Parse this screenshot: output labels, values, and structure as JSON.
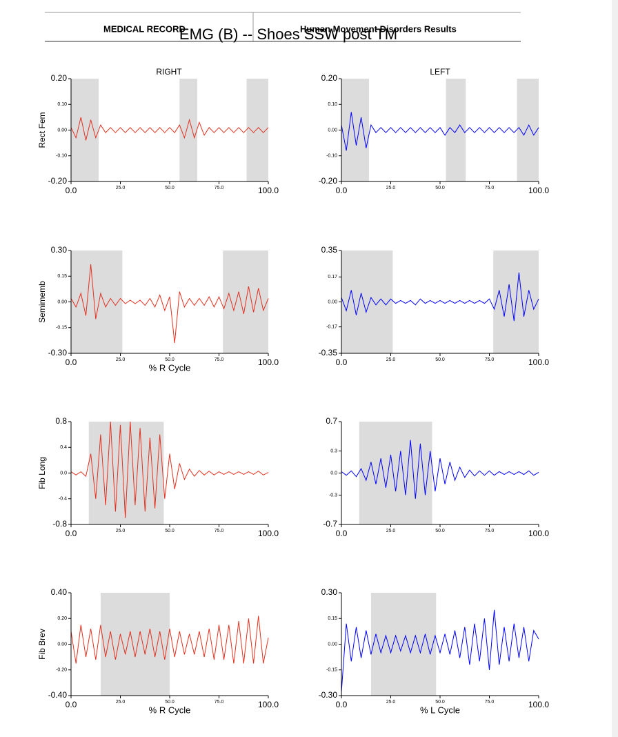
{
  "header": {
    "left": "MEDICAL RECORD",
    "right": "Human Movement Disorders Results"
  },
  "title": "EMG (B) -- Shoes SSW post TM",
  "columns": [
    "RIGHT",
    "LEFT"
  ],
  "chart_data": [
    {
      "type": "line",
      "ylabel": "Rect Fem",
      "xlim": [
        0,
        100
      ],
      "ylim": [
        -0.2,
        0.2
      ],
      "yticks": [
        {
          "value": -0.2,
          "label": "-0.20"
        },
        {
          "value": -0.1,
          "label": "-0.10"
        },
        {
          "value": 0,
          "label": "0.00"
        },
        {
          "value": 0.1,
          "label": "0.10"
        },
        {
          "value": 0.2,
          "label": "0.20"
        }
      ],
      "xticks": [
        {
          "value": 0,
          "label": "0.0"
        },
        {
          "value": 25,
          "label": "25.0"
        },
        {
          "value": 50,
          "label": "50.0"
        },
        {
          "value": 75,
          "label": "75.0"
        },
        {
          "value": 100,
          "label": "100.0"
        }
      ],
      "shaded": [
        [
          0,
          14
        ],
        [
          55,
          64
        ],
        [
          89,
          100
        ]
      ],
      "x": [
        0,
        2.5,
        5,
        7.5,
        10,
        12.5,
        15,
        17.5,
        20,
        22.5,
        25,
        27.5,
        30,
        32.5,
        35,
        37.5,
        40,
        42.5,
        45,
        47.5,
        50,
        52.5,
        55,
        57.5,
        60,
        62.5,
        65,
        67.5,
        70,
        72.5,
        75,
        77.5,
        80,
        82.5,
        85,
        87.5,
        90,
        92.5,
        95,
        97.5,
        100
      ],
      "series": [
        {
          "color": "#e3301f",
          "values": [
            0.01,
            -0.03,
            0.05,
            -0.04,
            0.04,
            -0.03,
            0.02,
            -0.01,
            0.01,
            -0.01,
            0.01,
            -0.01,
            0.01,
            -0.01,
            0.01,
            -0.01,
            0.01,
            -0.01,
            0.01,
            -0.01,
            0.01,
            -0.01,
            0.02,
            -0.03,
            0.04,
            -0.03,
            0.03,
            -0.02,
            0.01,
            -0.01,
            0.01,
            -0.01,
            0.01,
            -0.01,
            0.01,
            -0.01,
            0.01,
            -0.01,
            0.01,
            -0.01,
            0.01
          ]
        }
      ]
    },
    {
      "type": "line",
      "xlim": [
        0,
        100
      ],
      "ylim": [
        -0.2,
        0.2
      ],
      "yticks": [
        {
          "value": -0.2,
          "label": "-0.20"
        },
        {
          "value": -0.1,
          "label": "-0.10"
        },
        {
          "value": 0,
          "label": "0.00"
        },
        {
          "value": 0.1,
          "label": "0.10"
        },
        {
          "value": 0.2,
          "label": "0.20"
        }
      ],
      "xticks": [
        {
          "value": 0,
          "label": "0.0"
        },
        {
          "value": 25,
          "label": "25.0"
        },
        {
          "value": 50,
          "label": "50.0"
        },
        {
          "value": 75,
          "label": "75.0"
        },
        {
          "value": 100,
          "label": "100.0"
        }
      ],
      "shaded": [
        [
          0,
          14
        ],
        [
          53,
          63
        ],
        [
          89,
          100
        ]
      ],
      "x": [
        0,
        2.5,
        5,
        7.5,
        10,
        12.5,
        15,
        17.5,
        20,
        22.5,
        25,
        27.5,
        30,
        32.5,
        35,
        37.5,
        40,
        42.5,
        45,
        47.5,
        50,
        52.5,
        55,
        57.5,
        60,
        62.5,
        65,
        67.5,
        70,
        72.5,
        75,
        77.5,
        80,
        82.5,
        85,
        87.5,
        90,
        92.5,
        95,
        97.5,
        100
      ],
      "series": [
        {
          "color": "#0000ff",
          "values": [
            0.02,
            -0.08,
            0.07,
            -0.06,
            0.05,
            -0.07,
            0.02,
            -0.01,
            0.01,
            -0.01,
            0.01,
            -0.01,
            0.01,
            -0.01,
            0.01,
            -0.01,
            0.01,
            -0.01,
            0.01,
            -0.01,
            0.01,
            -0.02,
            0.01,
            -0.01,
            0.02,
            -0.01,
            0.01,
            -0.01,
            0.01,
            -0.01,
            0.01,
            -0.01,
            0.01,
            -0.01,
            0.01,
            -0.01,
            0.01,
            -0.02,
            0.02,
            -0.02,
            0.01
          ]
        }
      ]
    },
    {
      "type": "line",
      "ylabel": "Semimemb",
      "xlabel": "% R Cycle",
      "xlim": [
        0,
        100
      ],
      "ylim": [
        -0.3,
        0.3
      ],
      "yticks": [
        {
          "value": -0.3,
          "label": "-0.30"
        },
        {
          "value": -0.15,
          "label": "-0.15"
        },
        {
          "value": 0,
          "label": "0.00"
        },
        {
          "value": 0.15,
          "label": "0.15"
        },
        {
          "value": 0.3,
          "label": "0.30"
        }
      ],
      "xticks": [
        {
          "value": 0,
          "label": "0.0"
        },
        {
          "value": 25,
          "label": "25.0"
        },
        {
          "value": 50,
          "label": "50.0"
        },
        {
          "value": 75,
          "label": "75.0"
        },
        {
          "value": 100,
          "label": "100.0"
        }
      ],
      "shaded": [
        [
          0,
          26
        ],
        [
          77,
          100
        ]
      ],
      "x": [
        0,
        2.5,
        5,
        7.5,
        10,
        12.5,
        15,
        17.5,
        20,
        22.5,
        25,
        27.5,
        30,
        32.5,
        35,
        37.5,
        40,
        42.5,
        45,
        47.5,
        50,
        52.5,
        55,
        57.5,
        60,
        62.5,
        65,
        67.5,
        70,
        72.5,
        75,
        77.5,
        80,
        82.5,
        85,
        87.5,
        90,
        92.5,
        95,
        97.5,
        100
      ],
      "series": [
        {
          "color": "#e3301f",
          "values": [
            0.02,
            -0.03,
            0.05,
            -0.08,
            0.22,
            -0.1,
            0.05,
            -0.03,
            0.02,
            -0.02,
            0.02,
            -0.01,
            0.01,
            -0.01,
            0.01,
            -0.02,
            0.02,
            -0.03,
            0.04,
            -0.05,
            0.03,
            -0.24,
            0.06,
            -0.03,
            0.02,
            -0.02,
            0.02,
            -0.02,
            0.03,
            -0.03,
            0.03,
            -0.04,
            0.05,
            -0.05,
            0.06,
            -0.07,
            0.09,
            -0.06,
            0.08,
            -0.05,
            0.02
          ]
        }
      ]
    },
    {
      "type": "line",
      "xlim": [
        0,
        100
      ],
      "ylim": [
        -0.35,
        0.35
      ],
      "yticks": [
        {
          "value": -0.35,
          "label": "-0.35"
        },
        {
          "value": -0.17,
          "label": "-0.17"
        },
        {
          "value": 0,
          "label": "0.00"
        },
        {
          "value": 0.17,
          "label": "0.17"
        },
        {
          "value": 0.35,
          "label": "0.35"
        }
      ],
      "xticks": [
        {
          "value": 0,
          "label": "0.0"
        },
        {
          "value": 25,
          "label": "25.0"
        },
        {
          "value": 50,
          "label": "50.0"
        },
        {
          "value": 75,
          "label": "75.0"
        },
        {
          "value": 100,
          "label": "100.0"
        }
      ],
      "shaded": [
        [
          0,
          26
        ],
        [
          77,
          100
        ]
      ],
      "x": [
        0,
        2.5,
        5,
        7.5,
        10,
        12.5,
        15,
        17.5,
        20,
        22.5,
        25,
        27.5,
        30,
        32.5,
        35,
        37.5,
        40,
        42.5,
        45,
        47.5,
        50,
        52.5,
        55,
        57.5,
        60,
        62.5,
        65,
        67.5,
        70,
        72.5,
        75,
        77.5,
        80,
        82.5,
        85,
        87.5,
        90,
        92.5,
        95,
        97.5,
        100
      ],
      "series": [
        {
          "color": "#0000ff",
          "values": [
            0.03,
            -0.06,
            0.08,
            -0.09,
            0.06,
            -0.07,
            0.03,
            -0.02,
            0.02,
            -0.02,
            0.02,
            -0.01,
            0.01,
            -0.01,
            0.01,
            -0.02,
            0.02,
            -0.01,
            0.01,
            -0.01,
            0.01,
            -0.01,
            0.01,
            -0.01,
            0.01,
            -0.01,
            0.01,
            -0.01,
            0.01,
            -0.01,
            0.02,
            -0.05,
            0.08,
            -0.1,
            0.12,
            -0.13,
            0.2,
            -0.1,
            0.08,
            -0.05,
            0.02
          ]
        }
      ]
    },
    {
      "type": "line",
      "ylabel": "Fib Long",
      "xlim": [
        0,
        100
      ],
      "ylim": [
        -0.8,
        0.8
      ],
      "yticks": [
        {
          "value": -0.8,
          "label": "-0.8"
        },
        {
          "value": -0.4,
          "label": "-0.4"
        },
        {
          "value": 0,
          "label": "0.0"
        },
        {
          "value": 0.4,
          "label": "0.4"
        },
        {
          "value": 0.8,
          "label": "0.8"
        }
      ],
      "xticks": [
        {
          "value": 0,
          "label": "0.0"
        },
        {
          "value": 25,
          "label": "25.0"
        },
        {
          "value": 50,
          "label": "50.0"
        },
        {
          "value": 75,
          "label": "75.0"
        },
        {
          "value": 100,
          "label": "100.0"
        }
      ],
      "shaded": [
        [
          9,
          47
        ]
      ],
      "x": [
        0,
        2.5,
        5,
        7.5,
        10,
        12.5,
        15,
        17.5,
        20,
        22.5,
        25,
        27.5,
        30,
        32.5,
        35,
        37.5,
        40,
        42.5,
        45,
        47.5,
        50,
        52.5,
        55,
        57.5,
        60,
        62.5,
        65,
        67.5,
        70,
        72.5,
        75,
        77.5,
        80,
        82.5,
        85,
        87.5,
        90,
        92.5,
        95,
        97.5,
        100
      ],
      "series": [
        {
          "color": "#e3301f",
          "values": [
            0.02,
            -0.03,
            0.02,
            -0.05,
            0.3,
            -0.4,
            0.6,
            -0.5,
            0.8,
            -0.6,
            0.75,
            -0.7,
            0.8,
            -0.5,
            0.7,
            -0.6,
            0.55,
            -0.55,
            0.6,
            -0.4,
            0.3,
            -0.25,
            0.15,
            -0.1,
            0.06,
            -0.05,
            0.04,
            -0.03,
            0.03,
            -0.03,
            0.02,
            -0.02,
            0.02,
            -0.02,
            0.02,
            -0.02,
            0.02,
            -0.02,
            0.03,
            -0.03,
            0.01
          ]
        }
      ]
    },
    {
      "type": "line",
      "xlim": [
        0,
        100
      ],
      "ylim": [
        -0.7,
        0.7
      ],
      "yticks": [
        {
          "value": -0.7,
          "label": "-0.7"
        },
        {
          "value": -0.3,
          "label": "-0.3"
        },
        {
          "value": 0,
          "label": "0.0"
        },
        {
          "value": 0.3,
          "label": "0.3"
        },
        {
          "value": 0.7,
          "label": "0.7"
        }
      ],
      "xticks": [
        {
          "value": 0,
          "label": "0.0"
        },
        {
          "value": 25,
          "label": "25.0"
        },
        {
          "value": 50,
          "label": "50.0"
        },
        {
          "value": 75,
          "label": "75.0"
        },
        {
          "value": 100,
          "label": "100.0"
        }
      ],
      "shaded": [
        [
          9,
          46
        ]
      ],
      "x": [
        0,
        2.5,
        5,
        7.5,
        10,
        12.5,
        15,
        17.5,
        20,
        22.5,
        25,
        27.5,
        30,
        32.5,
        35,
        37.5,
        40,
        42.5,
        45,
        47.5,
        50,
        52.5,
        55,
        57.5,
        60,
        62.5,
        65,
        67.5,
        70,
        72.5,
        75,
        77.5,
        80,
        82.5,
        85,
        87.5,
        90,
        92.5,
        95,
        97.5,
        100
      ],
      "series": [
        {
          "color": "#0000ff",
          "values": [
            0.02,
            -0.03,
            0.03,
            -0.05,
            0.06,
            -0.1,
            0.15,
            -0.15,
            0.2,
            -0.2,
            0.25,
            -0.25,
            0.3,
            -0.3,
            0.45,
            -0.35,
            0.4,
            -0.3,
            0.3,
            -0.25,
            0.2,
            -0.15,
            0.15,
            -0.1,
            0.08,
            -0.06,
            0.04,
            -0.04,
            0.03,
            -0.03,
            0.03,
            -0.03,
            0.02,
            -0.02,
            0.02,
            -0.02,
            0.02,
            -0.02,
            0.03,
            -0.03,
            0.01
          ]
        }
      ]
    },
    {
      "type": "line",
      "ylabel": "Fib Brev",
      "xlabel": "% R Cycle",
      "xlim": [
        0,
        100
      ],
      "ylim": [
        -0.4,
        0.4
      ],
      "yticks": [
        {
          "value": -0.4,
          "label": "-0.40"
        },
        {
          "value": -0.2,
          "label": "-0.20"
        },
        {
          "value": 0,
          "label": "0.00"
        },
        {
          "value": 0.2,
          "label": "0.20"
        },
        {
          "value": 0.4,
          "label": "0.40"
        }
      ],
      "xticks": [
        {
          "value": 0,
          "label": "0.0"
        },
        {
          "value": 25,
          "label": "25.0"
        },
        {
          "value": 50,
          "label": "50.0"
        },
        {
          "value": 75,
          "label": "75.0"
        },
        {
          "value": 100,
          "label": "100.0"
        }
      ],
      "shaded": [
        [
          15,
          50
        ]
      ],
      "x": [
        0,
        2.5,
        5,
        7.5,
        10,
        12.5,
        15,
        17.5,
        20,
        22.5,
        25,
        27.5,
        30,
        32.5,
        35,
        37.5,
        40,
        42.5,
        45,
        47.5,
        50,
        52.5,
        55,
        57.5,
        60,
        62.5,
        65,
        67.5,
        70,
        72.5,
        75,
        77.5,
        80,
        82.5,
        85,
        87.5,
        90,
        92.5,
        95,
        97.5,
        100
      ],
      "series": [
        {
          "color": "#e3301f",
          "values": [
            0.1,
            -0.15,
            0.15,
            -0.1,
            0.12,
            -0.12,
            0.15,
            -0.1,
            0.1,
            -0.12,
            0.08,
            -0.08,
            0.1,
            -0.1,
            0.1,
            -0.08,
            0.12,
            -0.1,
            0.1,
            -0.12,
            0.12,
            -0.1,
            0.1,
            -0.08,
            0.08,
            -0.08,
            0.1,
            -0.1,
            0.12,
            -0.12,
            0.15,
            -0.12,
            0.15,
            -0.15,
            0.18,
            -0.15,
            0.2,
            -0.15,
            0.22,
            -0.15,
            0.05
          ]
        }
      ]
    },
    {
      "type": "line",
      "xlabel": "% L Cycle",
      "xlim": [
        0,
        100
      ],
      "ylim": [
        -0.3,
        0.3
      ],
      "yticks": [
        {
          "value": -0.3,
          "label": "-0.30"
        },
        {
          "value": -0.15,
          "label": "-0.15"
        },
        {
          "value": 0,
          "label": "0.00"
        },
        {
          "value": 0.15,
          "label": "0.15"
        },
        {
          "value": 0.3,
          "label": "0.30"
        }
      ],
      "xticks": [
        {
          "value": 0,
          "label": "0.0"
        },
        {
          "value": 25,
          "label": "25.0"
        },
        {
          "value": 50,
          "label": "50.0"
        },
        {
          "value": 75,
          "label": "75.0"
        },
        {
          "value": 100,
          "label": "100.0"
        }
      ],
      "shaded": [
        [
          15,
          48
        ]
      ],
      "x": [
        0,
        2.5,
        5,
        7.5,
        10,
        12.5,
        15,
        17.5,
        20,
        22.5,
        25,
        27.5,
        30,
        32.5,
        35,
        37.5,
        40,
        42.5,
        45,
        47.5,
        50,
        52.5,
        55,
        57.5,
        60,
        62.5,
        65,
        67.5,
        70,
        72.5,
        75,
        77.5,
        80,
        82.5,
        85,
        87.5,
        90,
        92.5,
        95,
        97.5,
        100
      ],
      "series": [
        {
          "color": "#0000ff",
          "values": [
            -0.28,
            0.12,
            -0.1,
            0.1,
            -0.08,
            0.08,
            -0.06,
            0.06,
            -0.05,
            0.05,
            -0.05,
            0.05,
            -0.04,
            0.05,
            -0.05,
            0.05,
            -0.05,
            0.06,
            -0.06,
            0.05,
            -0.05,
            0.06,
            -0.06,
            0.08,
            -0.08,
            0.1,
            -0.12,
            0.12,
            -0.1,
            0.15,
            -0.15,
            0.2,
            -0.12,
            0.1,
            -0.1,
            0.12,
            -0.08,
            0.1,
            -0.1,
            0.08,
            0.03
          ]
        }
      ]
    }
  ]
}
